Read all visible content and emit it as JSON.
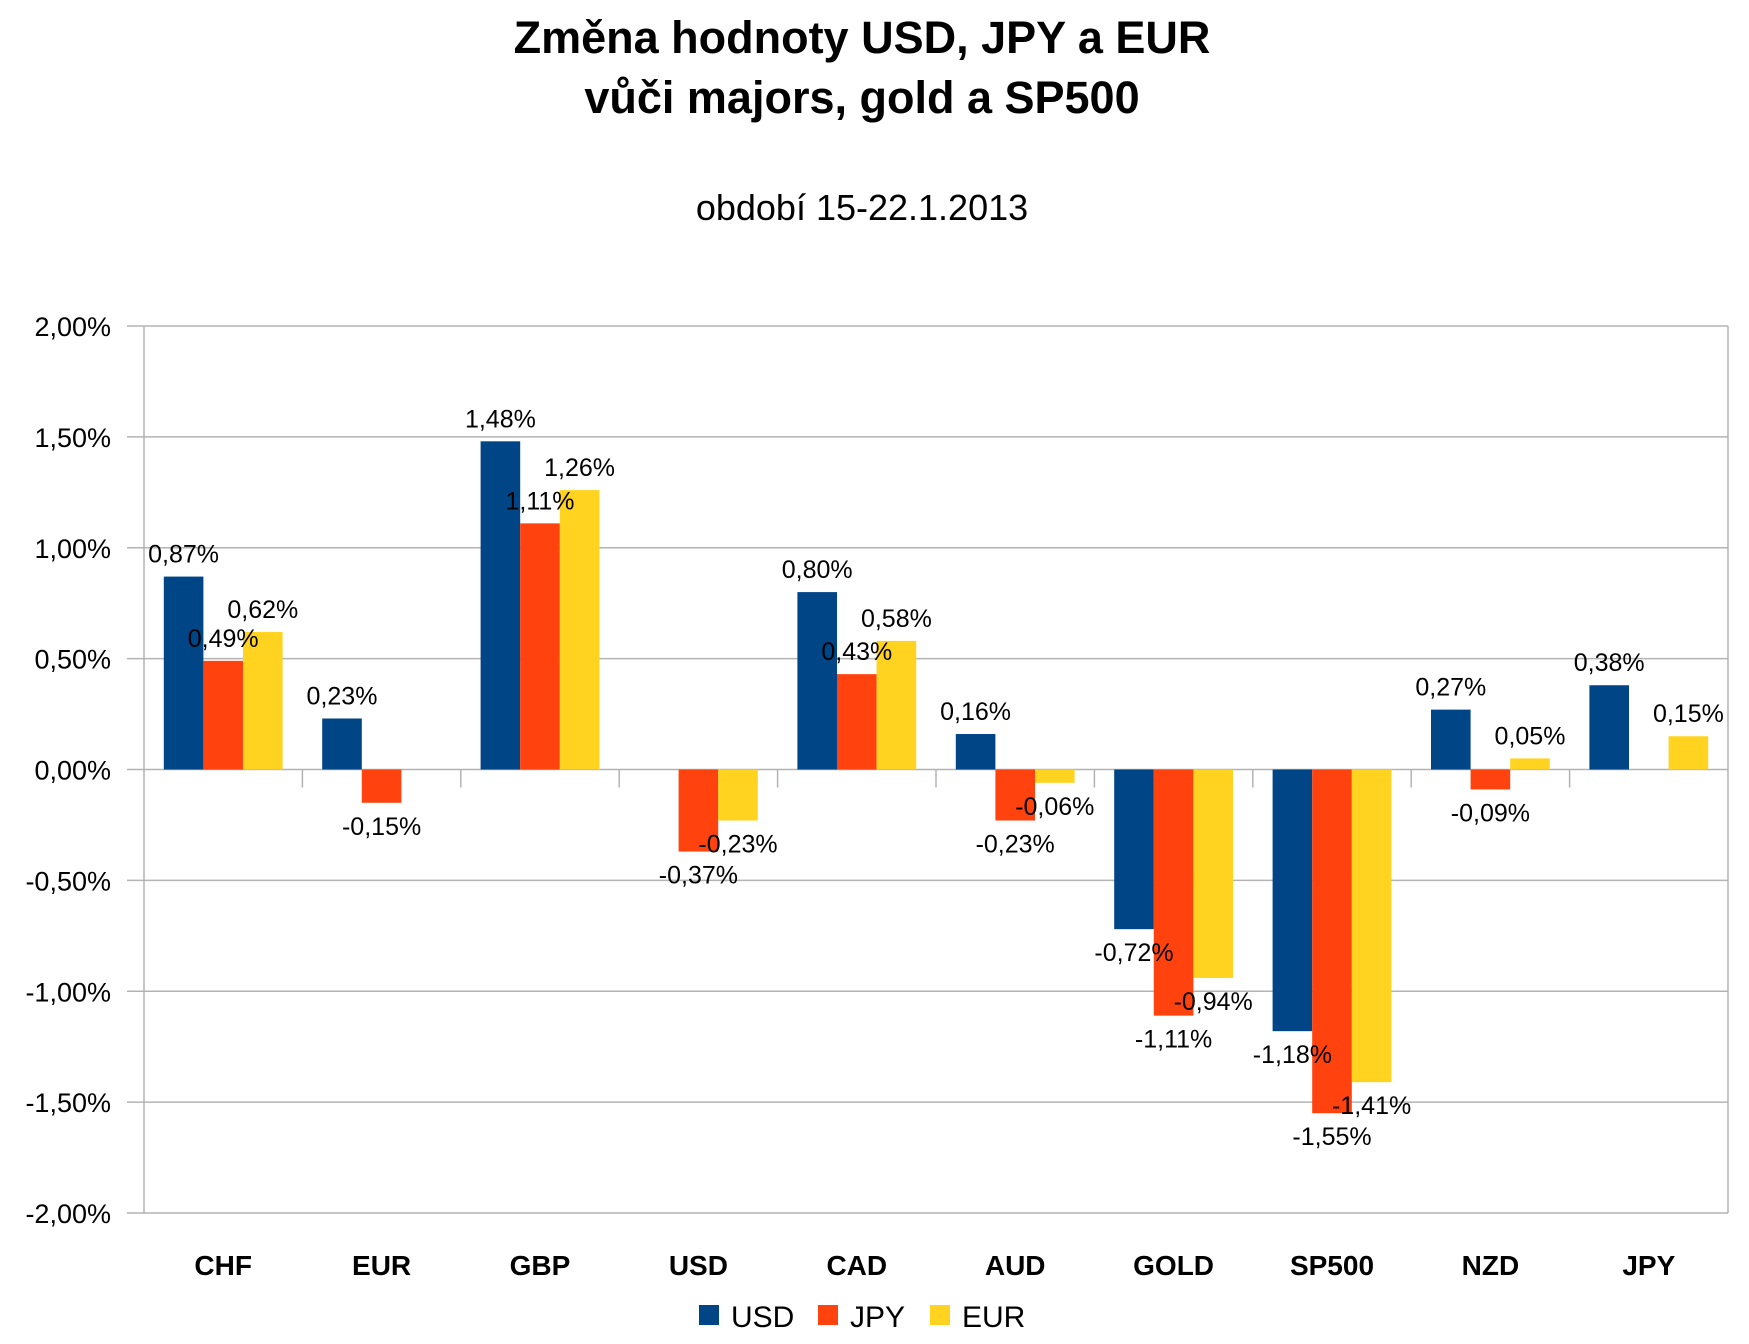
{
  "chart_data": {
    "type": "bar",
    "title": [
      "Změna hodnoty USD, JPY a EUR",
      "vůči majors, gold a SP500"
    ],
    "subtitle": "období 15-22.1.2013",
    "xlabel": "",
    "ylabel": "",
    "categories": [
      "CHF",
      "EUR",
      "GBP",
      "USD",
      "CAD",
      "AUD",
      "GOLD",
      "SP500",
      "NZD",
      "JPY"
    ],
    "series": [
      {
        "name": "USD",
        "color": "#004586",
        "values": [
          0.87,
          0.23,
          1.48,
          null,
          0.8,
          0.16,
          -0.72,
          -1.18,
          0.27,
          0.38
        ],
        "labels": [
          "0,87%",
          "0,23%",
          "1,48%",
          null,
          "0,80%",
          "0,16%",
          "-0,72%",
          "-1,18%",
          "0,27%",
          "0,38%"
        ]
      },
      {
        "name": "JPY",
        "color": "#FF420E",
        "values": [
          0.49,
          -0.15,
          1.11,
          -0.37,
          0.43,
          -0.23,
          -1.11,
          -1.55,
          -0.09,
          null
        ],
        "labels": [
          "0,49%",
          "-0,15%",
          "1,11%",
          "-0,37%",
          "0,43%",
          "-0,23%",
          "-1,11%",
          "-1,55%",
          "-0,09%",
          null
        ]
      },
      {
        "name": "EUR",
        "color": "#FFD320",
        "values": [
          0.62,
          null,
          1.26,
          -0.23,
          0.58,
          -0.06,
          -0.94,
          -1.41,
          0.05,
          0.15
        ],
        "labels": [
          "0,62%",
          null,
          "1,26%",
          "-0,23%",
          "0,58%",
          "-0,06%",
          "-0,94%",
          "-1,41%",
          "0,05%",
          "0,15%"
        ]
      }
    ],
    "ylim": [
      -2.0,
      2.0
    ],
    "yticks": [
      2.0,
      1.5,
      1.0,
      0.5,
      0.0,
      -0.5,
      -1.0,
      -1.5,
      -2.0
    ],
    "ytick_labels": [
      "2,00%",
      "1,50%",
      "1,00%",
      "0,50%",
      "0,00%",
      "-0,50%",
      "-1,00%",
      "-1,50%",
      "-2,00%"
    ],
    "grid": true,
    "legend": {
      "position": "bottom",
      "entries": [
        "USD",
        "JPY",
        "EUR"
      ]
    }
  }
}
